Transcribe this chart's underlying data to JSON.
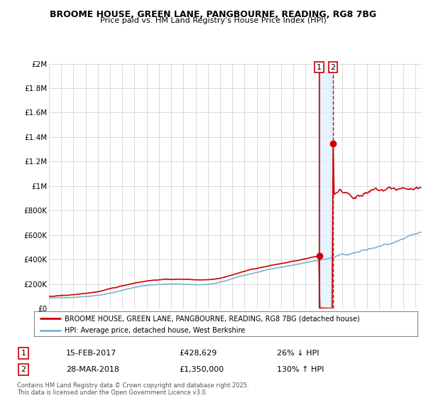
{
  "title1": "BROOME HOUSE, GREEN LANE, PANGBOURNE, READING, RG8 7BG",
  "title2": "Price paid vs. HM Land Registry's House Price Index (HPI)",
  "legend_line1": "BROOME HOUSE, GREEN LANE, PANGBOURNE, READING, RG8 7BG (detached house)",
  "legend_line2": "HPI: Average price, detached house, West Berkshire",
  "annotation1_num": "1",
  "annotation1_date": "15-FEB-2017",
  "annotation1_price": "£428,629",
  "annotation1_hpi": "26% ↓ HPI",
  "annotation2_num": "2",
  "annotation2_date": "28-MAR-2018",
  "annotation2_price": "£1,350,000",
  "annotation2_hpi": "130% ↑ HPI",
  "footnote": "Contains HM Land Registry data © Crown copyright and database right 2025.\nThis data is licensed under the Open Government Licence v3.0.",
  "hpi_color": "#7ab3d4",
  "price_color": "#cc0000",
  "marker_color": "#cc0000",
  "shade_color": "#ddeeff",
  "ylim": [
    0,
    2000000
  ],
  "yticks": [
    0,
    200000,
    400000,
    600000,
    800000,
    1000000,
    1200000,
    1400000,
    1600000,
    1800000,
    2000000
  ],
  "ytick_labels": [
    "£0",
    "£200K",
    "£400K",
    "£600K",
    "£800K",
    "£1M",
    "£1.2M",
    "£1.4M",
    "£1.6M",
    "£1.8M",
    "£2M"
  ],
  "sale1_year": 2017.12,
  "sale1_y": 428629,
  "sale2_year": 2018.24,
  "sale2_y": 1350000,
  "xmin": 1995.0,
  "xmax": 2025.5
}
